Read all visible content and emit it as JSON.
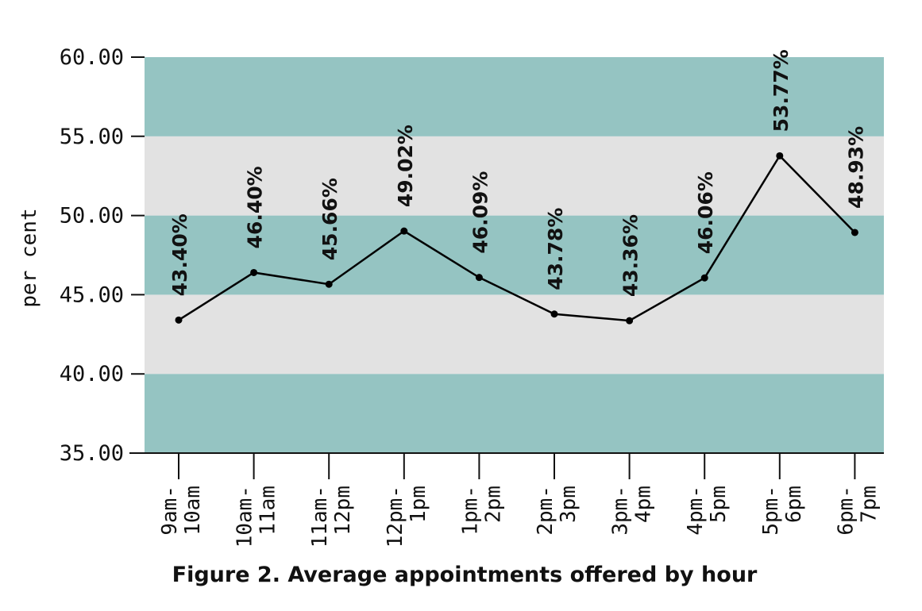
{
  "chart_data": {
    "type": "line",
    "title": "Figure 2. Average appointments offered by hour",
    "ylabel": "per cent",
    "xlabel": "",
    "ylim": [
      35,
      60
    ],
    "yticks": [
      "35.00",
      "40.00",
      "45.00",
      "50.00",
      "55.00",
      "60.00"
    ],
    "categories": [
      [
        "9am-",
        "10am"
      ],
      [
        "10am-",
        "11am"
      ],
      [
        "11am-",
        "12pm"
      ],
      [
        "12pm-",
        "1pm"
      ],
      [
        "1pm-",
        "2pm"
      ],
      [
        "2pm-",
        "3pm"
      ],
      [
        "3pm-",
        "4pm"
      ],
      [
        "4pm-",
        "5pm"
      ],
      [
        "5pm-",
        "6pm"
      ],
      [
        "6pm-",
        "7pm"
      ]
    ],
    "values": [
      43.4,
      46.4,
      45.66,
      49.02,
      46.09,
      43.78,
      43.36,
      46.06,
      53.77,
      48.93
    ],
    "data_labels": [
      "43.40%",
      "46.40%",
      "45.66%",
      "49.02%",
      "46.09%",
      "43.78%",
      "43.36%",
      "46.06%",
      "53.77%",
      "48.93%"
    ],
    "band_colors": [
      "#95c4c2",
      "#e2e2e2"
    ],
    "line_color": "#000000",
    "grid": false,
    "legend": "none"
  }
}
